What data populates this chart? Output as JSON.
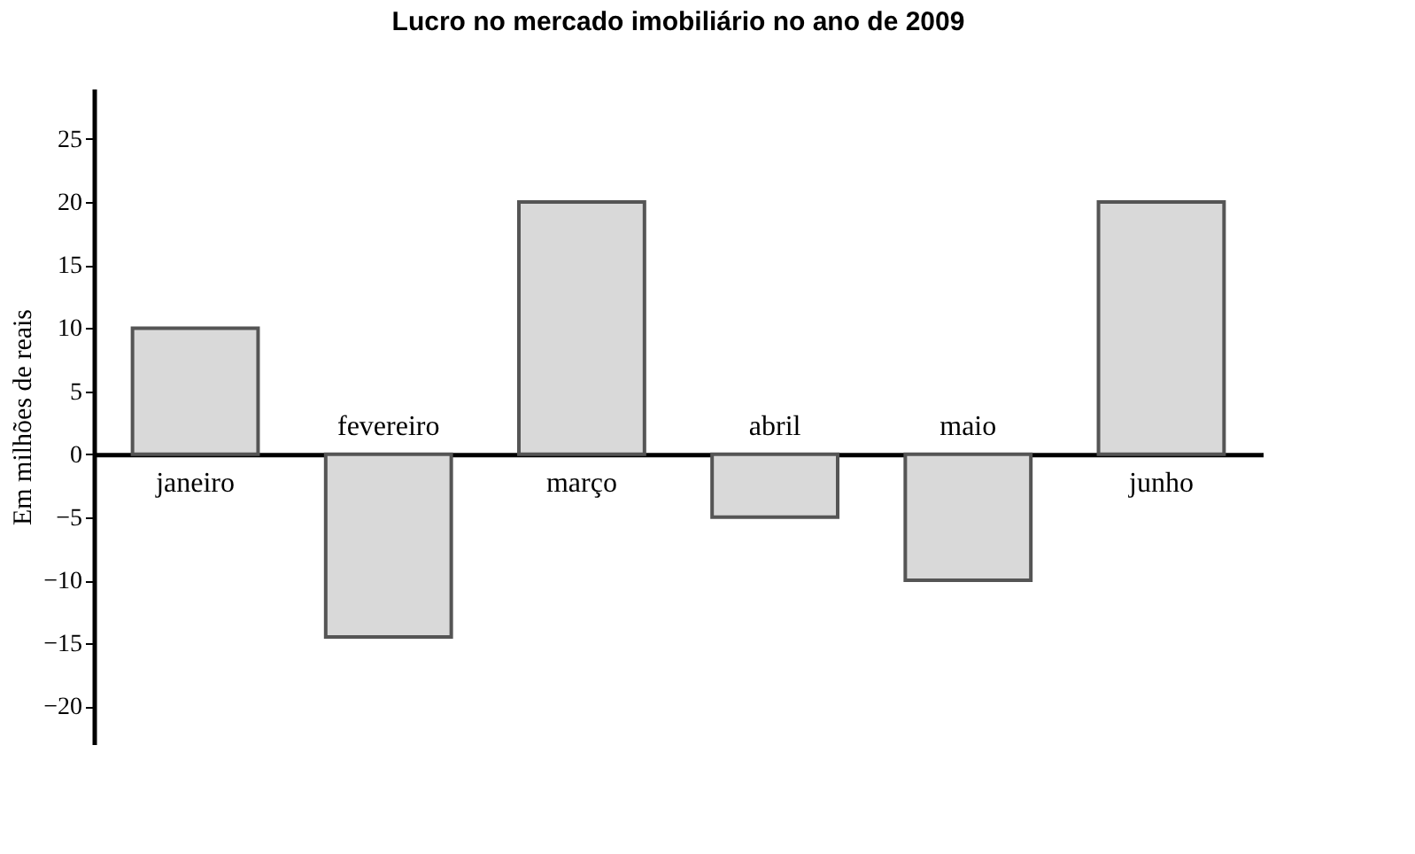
{
  "chart_data": {
    "type": "bar",
    "title": "Lucro no mercado imobiliário no ano de 2009",
    "ylabel": "Em milhões de reais",
    "categories": [
      "janeiro",
      "fevereiro",
      "março",
      "abril",
      "maio",
      "junho"
    ],
    "values": [
      10,
      -14.5,
      20,
      -5,
      -10,
      20
    ],
    "color": "#d9d9d9",
    "ylim": [
      -23,
      29
    ],
    "yticks": [
      -20,
      -15,
      -10,
      -5,
      0,
      5,
      10,
      15,
      20,
      25
    ],
    "grid": false
  }
}
